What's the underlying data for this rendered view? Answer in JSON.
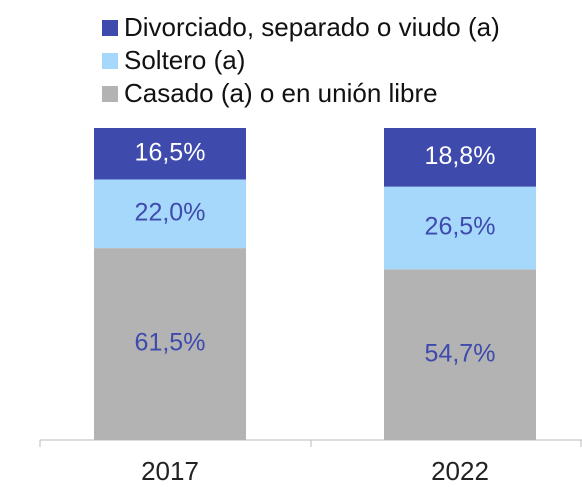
{
  "chart_data": {
    "type": "stacked_bar",
    "categories": [
      "2017",
      "2022"
    ],
    "ylim": [
      0,
      100
    ],
    "series": [
      {
        "name": "Casado (a) o en unión libre",
        "color": "#b3b3b3",
        "values": [
          61.5,
          54.7
        ],
        "value_labels": [
          "61,5%",
          "54,7%"
        ]
      },
      {
        "name": "Soltero (a)",
        "color": "#a6d8fb",
        "values": [
          22.0,
          26.5
        ],
        "value_labels": [
          "22,0%",
          "26,5%"
        ]
      },
      {
        "name": "Divorciado, separado o viudo (a)",
        "color": "#3f4aad",
        "values": [
          16.5,
          18.8
        ],
        "value_labels": [
          "16,5%",
          "18,8%"
        ]
      }
    ]
  }
}
